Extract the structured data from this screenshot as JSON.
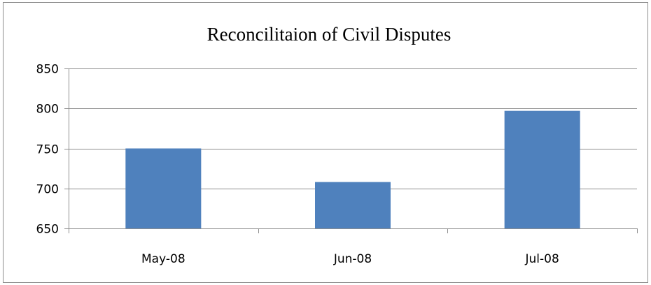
{
  "chart_data": {
    "type": "bar",
    "title": "Reconcilitaion of Civil Disputes",
    "xlabel": "",
    "ylabel": "",
    "categories": [
      "May-08",
      "Jun-08",
      "Jul-08"
    ],
    "values": [
      750,
      708,
      797
    ],
    "ylim": [
      650,
      850
    ],
    "yticks": [
      650,
      700,
      750,
      800,
      850
    ],
    "grid": true,
    "legend": "none",
    "bar_color": "#4f81bd"
  }
}
